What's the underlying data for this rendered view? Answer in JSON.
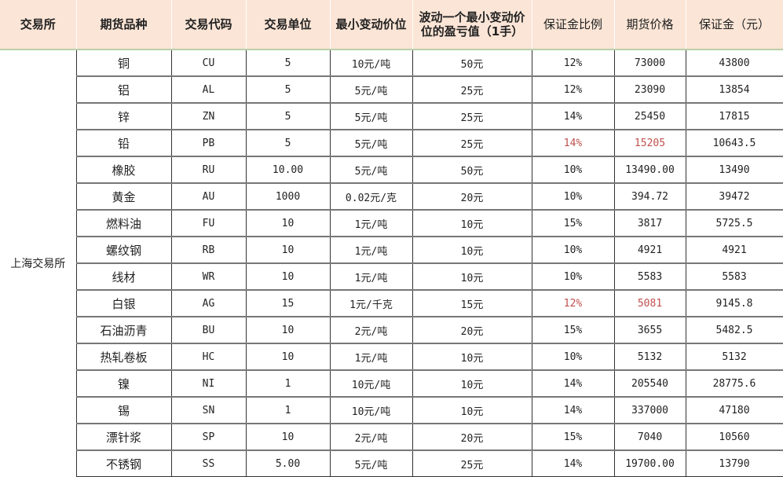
{
  "headers": [
    "交易所",
    "期货品种",
    "交易代码",
    "交易单位",
    "最小变动价位",
    "波动一个最小变动价位的盈亏值（1手）",
    "保证金比例",
    "期货价格",
    "保证金（元）"
  ],
  "exchange": "上海交易所",
  "highlight_color": "#c0504d",
  "rows": [
    [
      "铜",
      "CU",
      "5",
      "10元/吨",
      "50元",
      "12%",
      "73000",
      "43800"
    ],
    [
      "铝",
      "AL",
      "5",
      "5元/吨",
      "25元",
      "12%",
      "23090",
      "13854"
    ],
    [
      "锌",
      "ZN",
      "5",
      "5元/吨",
      "25元",
      "14%",
      "25450",
      "17815"
    ],
    [
      "铅",
      "PB",
      "5",
      "5元/吨",
      "25元",
      "14%",
      "15205",
      "10643.5"
    ],
    [
      "橡胶",
      "RU",
      "10.00",
      "5元/吨",
      "50元",
      "10%",
      "13490.00",
      "13490"
    ],
    [
      "黄金",
      "AU",
      "1000",
      "0.02元/克",
      "20元",
      "10%",
      "394.72",
      "39472"
    ],
    [
      "燃料油",
      "FU",
      "10",
      "1元/吨",
      "10元",
      "15%",
      "3817",
      "5725.5"
    ],
    [
      "螺纹钢",
      "RB",
      "10",
      "1元/吨",
      "10元",
      "10%",
      "4921",
      "4921"
    ],
    [
      "线材",
      "WR",
      "10",
      "1元/吨",
      "10元",
      "10%",
      "5583",
      "5583"
    ],
    [
      "白银",
      "AG",
      "15",
      "1元/千克",
      "15元",
      "12%",
      "5081",
      "9145.8"
    ],
    [
      "石油沥青",
      "BU",
      "10",
      "2元/吨",
      "20元",
      "15%",
      "3655",
      "5482.5"
    ],
    [
      "热轧卷板",
      "HC",
      "10",
      "1元/吨",
      "10元",
      "10%",
      "5132",
      "5132"
    ],
    [
      "镍",
      "NI",
      "1",
      "10元/吨",
      "10元",
      "14%",
      "205540",
      "28775.6"
    ],
    [
      "锡",
      "SN",
      "1",
      "10元/吨",
      "10元",
      "14%",
      "337000",
      "47180"
    ],
    [
      "漂针浆",
      "SP",
      "10",
      "2元/吨",
      "20元",
      "15%",
      "7040",
      "10560"
    ],
    [
      "不锈钢",
      "SS",
      "5.00",
      "5元/吨",
      "25元",
      "14%",
      "19700.00",
      "13790"
    ]
  ],
  "red_rows": [
    3,
    9
  ]
}
